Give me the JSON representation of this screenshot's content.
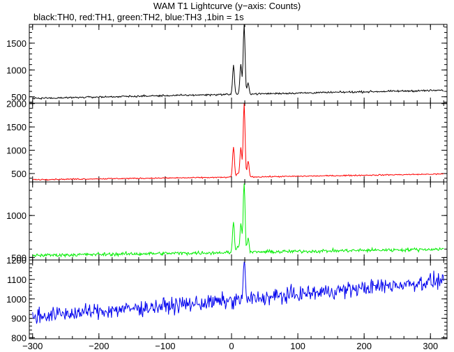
{
  "title": "WAM T1 Lightcurve (y−axis: Counts)",
  "subtitle": "black:TH0, red:TH1, green:TH2, blue:TH3 ,1bin = 1s",
  "chart_data": [
    {
      "type": "line",
      "series": [
        {
          "name": "TH0",
          "color": "#000000"
        }
      ],
      "xlim": [
        -305,
        325
      ],
      "ylim": [
        380,
        1850
      ],
      "yticks": [
        500,
        1000,
        1500
      ],
      "ytick_labels": [
        "500",
        "1000",
        "1500"
      ],
      "baseline": [
        [
          -300,
          470
        ],
        [
          0,
          545
        ],
        [
          320,
          620
        ]
      ],
      "noise": 16,
      "peaks": [
        [
          3,
          1080
        ],
        [
          9,
          550
        ],
        [
          14,
          1100
        ],
        [
          19,
          1850
        ],
        [
          25,
          760
        ]
      ]
    },
    {
      "type": "line",
      "series": [
        {
          "name": "TH1",
          "color": "#ff0000"
        }
      ],
      "xlim": [
        -305,
        325
      ],
      "ylim": [
        320,
        2010
      ],
      "yticks": [
        500,
        1000,
        1500,
        2000
      ],
      "ytick_labels": [
        "500",
        "1000",
        "1500",
        "2000"
      ],
      "baseline": [
        [
          -300,
          370
        ],
        [
          0,
          420
        ],
        [
          320,
          490
        ]
      ],
      "noise": 12,
      "peaks": [
        [
          3,
          1080
        ],
        [
          9,
          500
        ],
        [
          14,
          1050
        ],
        [
          19,
          2000
        ],
        [
          25,
          780
        ]
      ]
    },
    {
      "type": "line",
      "series": [
        {
          "name": "TH2",
          "color": "#00ee00"
        }
      ],
      "xlim": [
        -305,
        325
      ],
      "ylim": [
        470,
        1400
      ],
      "yticks": [
        500,
        1000
      ],
      "ytick_labels": [
        "500",
        "1000"
      ],
      "baseline": [
        [
          -300,
          525
        ],
        [
          0,
          560
        ],
        [
          320,
          600
        ]
      ],
      "noise": 20,
      "peaks": [
        [
          3,
          920
        ],
        [
          9,
          640
        ],
        [
          14,
          910
        ],
        [
          19,
          1400
        ],
        [
          25,
          720
        ]
      ]
    },
    {
      "type": "line",
      "series": [
        {
          "name": "TH3",
          "color": "#0000ee"
        }
      ],
      "xlim": [
        -305,
        325
      ],
      "ylim": [
        795,
        1200
      ],
      "yticks": [
        800,
        900,
        1000,
        1100,
        1200
      ],
      "ytick_labels": [
        "800",
        "900",
        "1000",
        "1100",
        "1200"
      ],
      "baseline": [
        [
          -300,
          910
        ],
        [
          0,
          990
        ],
        [
          320,
          1095
        ]
      ],
      "noise": 38,
      "peaks": [
        [
          19,
          1195
        ]
      ]
    }
  ],
  "x_axis": {
    "ticks": [
      -300,
      -200,
      -100,
      0,
      100,
      200,
      300
    ],
    "tick_labels": [
      "−300",
      "−200",
      "−100",
      "0",
      "100",
      "200",
      "300"
    ]
  }
}
